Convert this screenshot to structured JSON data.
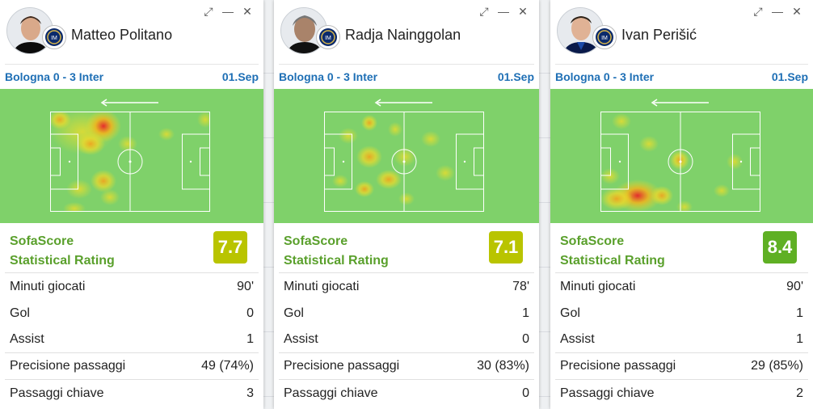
{
  "cards": [
    {
      "player": "Matteo Politano",
      "match": "Bologna 0 - 3 Inter",
      "date": "01.Sep",
      "rating_label_1": "SofaScore",
      "rating_label_2": "Statistical Rating",
      "rating": "7.7",
      "rating_color": "#b9c400",
      "stats": [
        {
          "label": "Minuti giocati",
          "value": "90'"
        },
        {
          "label": "Gol",
          "value": "0"
        },
        {
          "label": "Assist",
          "value": "1"
        },
        {
          "label": "Precisione passaggi",
          "value": "49 (74%)"
        },
        {
          "label": "Passaggi chiave",
          "value": "3"
        }
      ]
    },
    {
      "player": "Radja Nainggolan",
      "match": "Bologna 0 - 3 Inter",
      "date": "01.Sep",
      "rating_label_1": "SofaScore",
      "rating_label_2": "Statistical Rating",
      "rating": "7.1",
      "rating_color": "#b9c400",
      "stats": [
        {
          "label": "Minuti giocati",
          "value": "78'"
        },
        {
          "label": "Gol",
          "value": "1"
        },
        {
          "label": "Assist",
          "value": "0"
        },
        {
          "label": "Precisione passaggi",
          "value": "30 (83%)"
        },
        {
          "label": "Passaggi chiave",
          "value": "0"
        }
      ]
    },
    {
      "player": "Ivan Perišić",
      "match": "Bologna 0 - 3 Inter",
      "date": "01.Sep",
      "rating_label_1": "SofaScore",
      "rating_label_2": "Statistical Rating",
      "rating": "8.4",
      "rating_color": "#5fb024",
      "stats": [
        {
          "label": "Minuti giocati",
          "value": "90'"
        },
        {
          "label": "Gol",
          "value": "1"
        },
        {
          "label": "Assist",
          "value": "1"
        },
        {
          "label": "Precisione passaggi",
          "value": "29 (85%)"
        },
        {
          "label": "Passaggi chiave",
          "value": "2"
        }
      ]
    }
  ]
}
